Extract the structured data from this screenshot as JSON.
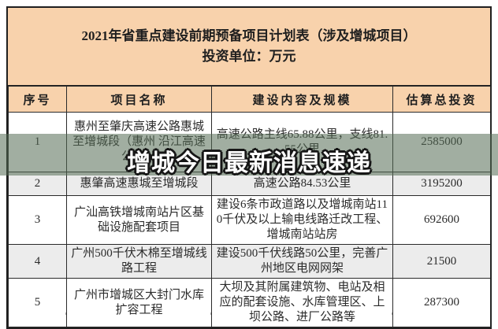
{
  "title": {
    "line1": "2021年省重点建设前期预备项目计划表（涉及增城项目）",
    "line2": "投资单位：万元"
  },
  "table": {
    "headers": [
      "序号",
      "项目名称",
      "建设内容及规模",
      "估算总投资"
    ],
    "rows": [
      {
        "no": "1",
        "name": "惠州至肇庆高速公路惠城至增城段（惠州 沿江高速公路）",
        "content": "高速公路主线65.88公里，支线81.55公里",
        "investment": "2585000"
      },
      {
        "no": "2",
        "name": "惠肇高速惠城至增城段",
        "content": "高速公路84.53公里",
        "investment": "3195200"
      },
      {
        "no": "3",
        "name": "广汕高铁增城南站片区基础设施配套项目",
        "content": "建设6条市政道路以及增城南站110千伏及以上输电线路迁改工程、增城南站站房",
        "investment": "692600"
      },
      {
        "no": "4",
        "name": "广州500千伏木棉至增城线路工程",
        "content": "建设500千伏线路50公里，完善广州地区电网网架",
        "investment": "21500"
      },
      {
        "no": "5",
        "name": "广州市增城区大封门水库扩容工程",
        "content": "大坝及其附属建筑物、电站及相应的配套设施、水库管理区、上坝公路、进厂公路等",
        "investment": "287300"
      }
    ]
  },
  "overlay": {
    "text": "增城今日最新消息速递"
  },
  "colors": {
    "title_band": "#f8d2ac",
    "header_band": "#f8d2ac",
    "alt_row": "#ececec",
    "border": "#1f1f1f",
    "overlay_band": "rgba(84,108,84,0.55)",
    "overlay_text": "#ffffff"
  }
}
